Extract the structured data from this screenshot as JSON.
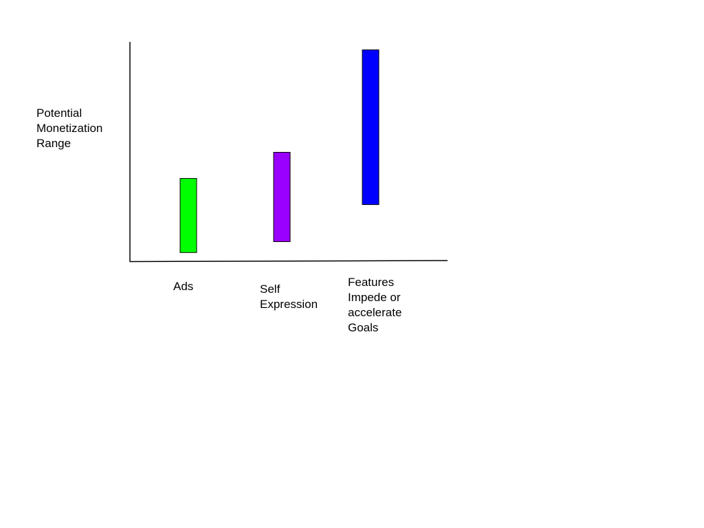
{
  "chart_data": {
    "type": "bar",
    "title": "",
    "ylabel": "Potential\nMonetization\nRange",
    "xlabel": "",
    "categories": [
      "Ads",
      "Self\nExpression",
      "Features\nImpede or\naccelerate\nGoals"
    ],
    "ranges": [
      {
        "low": 4,
        "high": 38,
        "color": "#00ff00"
      },
      {
        "low": 9,
        "high": 50,
        "color": "#9900ff"
      },
      {
        "low": 26,
        "high": 97,
        "color": "#0000ff"
      }
    ],
    "ylim": [
      0,
      100
    ],
    "grid": false,
    "legend": "none"
  }
}
